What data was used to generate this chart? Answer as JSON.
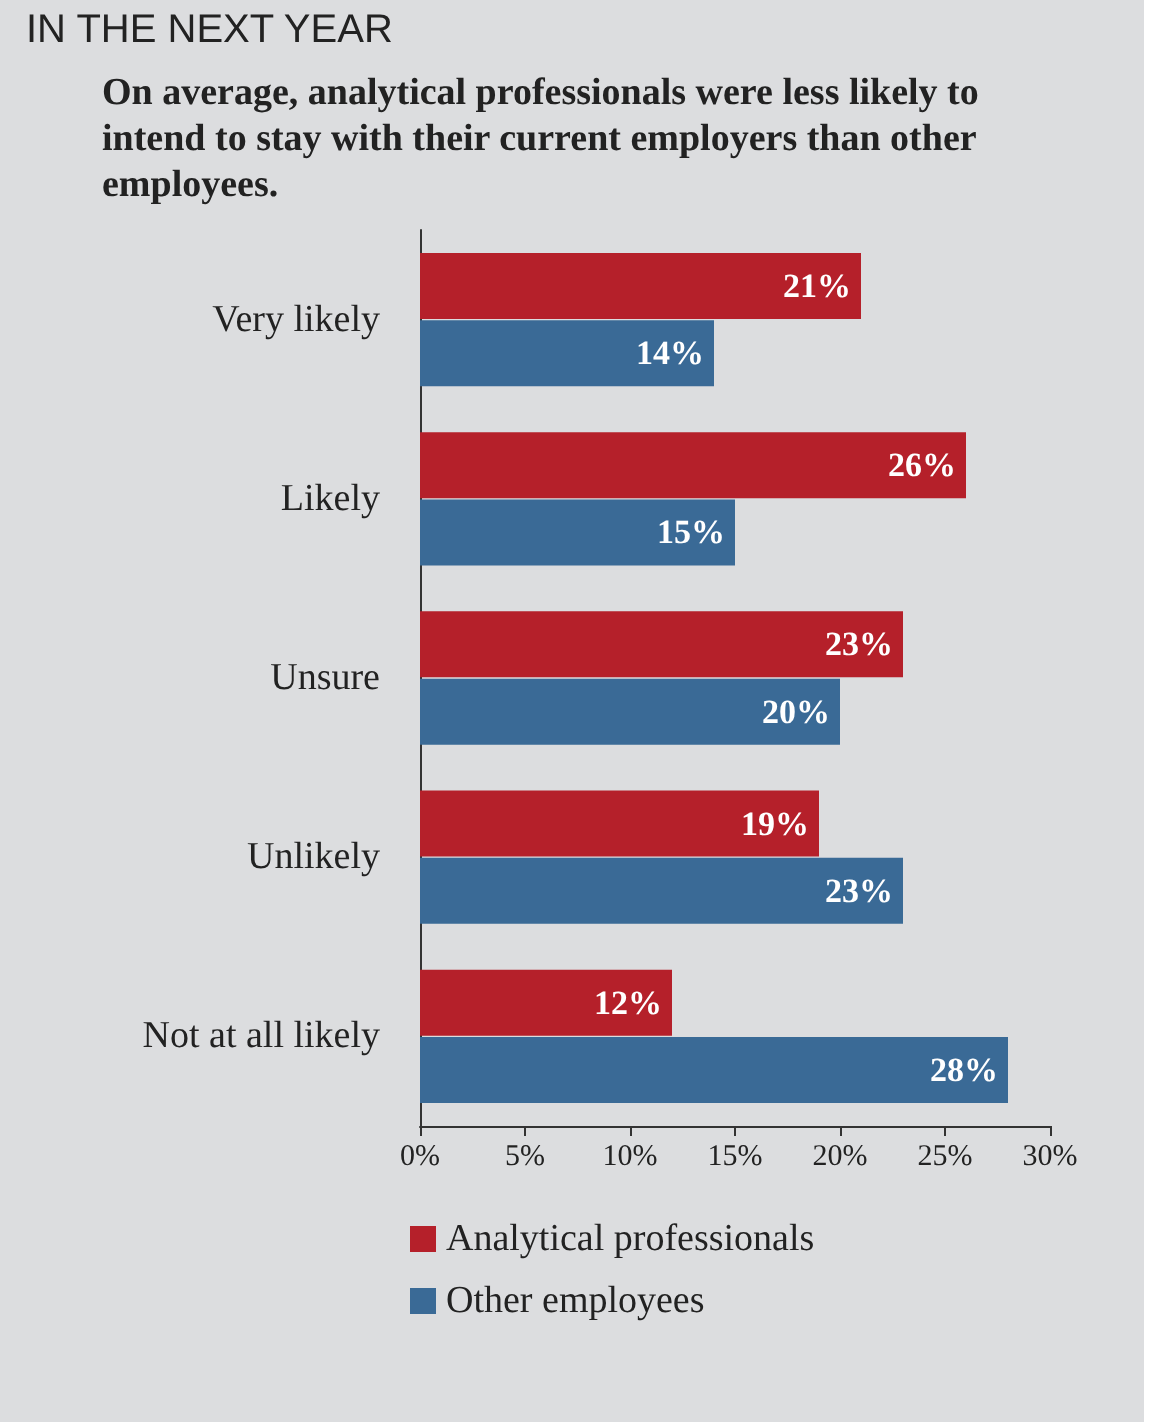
{
  "chart_data": {
    "type": "bar",
    "orientation": "horizontal",
    "title": "IN THE NEXT YEAR",
    "subtitle": "On average, analytical professionals were less likely to intend to stay with their current employers than other employees.",
    "categories": [
      "Very likely",
      "Likely",
      "Unsure",
      "Unlikely",
      "Not at all likely"
    ],
    "series": [
      {
        "name": "Analytical professionals",
        "color": "#b5202a",
        "values": [
          21,
          26,
          23,
          19,
          12
        ],
        "value_labels": [
          "21%",
          "26%",
          "23%",
          "19%",
          "12%"
        ]
      },
      {
        "name": "Other employees",
        "color": "#3a6a96",
        "values": [
          14,
          15,
          20,
          23,
          28
        ],
        "value_labels": [
          "14%",
          "15%",
          "20%",
          "23%",
          "28%"
        ]
      }
    ],
    "xlim": [
      0,
      30
    ],
    "xticks": [
      {
        "value": 0,
        "label": "0%"
      },
      {
        "value": 5,
        "label": "5%"
      },
      {
        "value": 10,
        "label": "10%"
      },
      {
        "value": 15,
        "label": "15%"
      },
      {
        "value": 20,
        "label": "20%"
      },
      {
        "value": 25,
        "label": "25%"
      },
      {
        "value": 30,
        "label": "30%"
      }
    ],
    "legend": "bottom left"
  }
}
